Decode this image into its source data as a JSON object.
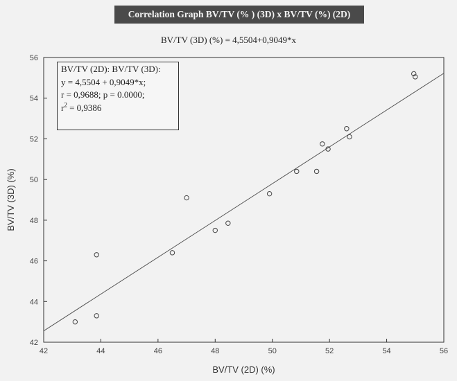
{
  "header": {
    "title": "Correlation Graph BV/TV (% ) (3D) x BV/TV (%) (2D)",
    "equation": "BV/TV (3D) (%)  = 4,5504+0,9049*x"
  },
  "stats_box": {
    "line1": "BV/TV (2D): BV/TV (3D):",
    "line2": "y = 4,5504 + 0,9049*x;",
    "line3": "r = 0,9688; p = 0.0000;",
    "line4_prefix": "r",
    "line4_sup": "2",
    "line4_suffix": " = 0,9386"
  },
  "chart_data": {
    "type": "scatter",
    "title": "Correlation Graph BV/TV (% ) (3D) x BV/TV (%) (2D)",
    "subtitle": "BV/TV (3D) (%)  = 4,5504+0,9049*x",
    "xlabel": "BV/TV (2D) (%)",
    "ylabel": "BV/TV (3D) (%)",
    "xlim": [
      42,
      56
    ],
    "ylim": [
      42,
      56
    ],
    "x_ticks": [
      42,
      44,
      46,
      48,
      50,
      52,
      54,
      56
    ],
    "y_ticks": [
      42,
      44,
      46,
      48,
      50,
      52,
      54,
      56
    ],
    "grid": false,
    "regression": {
      "intercept": 4.5504,
      "slope": 0.9049
    },
    "series": [
      {
        "points": [
          [
            43.1,
            43.0
          ],
          [
            43.85,
            43.3
          ],
          [
            43.85,
            46.3
          ],
          [
            46.5,
            46.4
          ],
          [
            47.0,
            49.1
          ],
          [
            48.0,
            47.5
          ],
          [
            48.45,
            47.85
          ],
          [
            49.9,
            49.3
          ],
          [
            50.85,
            50.4
          ],
          [
            51.55,
            50.4
          ],
          [
            51.75,
            51.75
          ],
          [
            51.95,
            51.5
          ],
          [
            52.6,
            52.5
          ],
          [
            52.7,
            52.1
          ],
          [
            54.95,
            55.2
          ],
          [
            55.0,
            55.05
          ]
        ]
      }
    ]
  },
  "style": {
    "background": "#f2f2f2",
    "banner_bg": "#4a4a4a",
    "marker_color": "#444444",
    "line_color": "#555555"
  }
}
